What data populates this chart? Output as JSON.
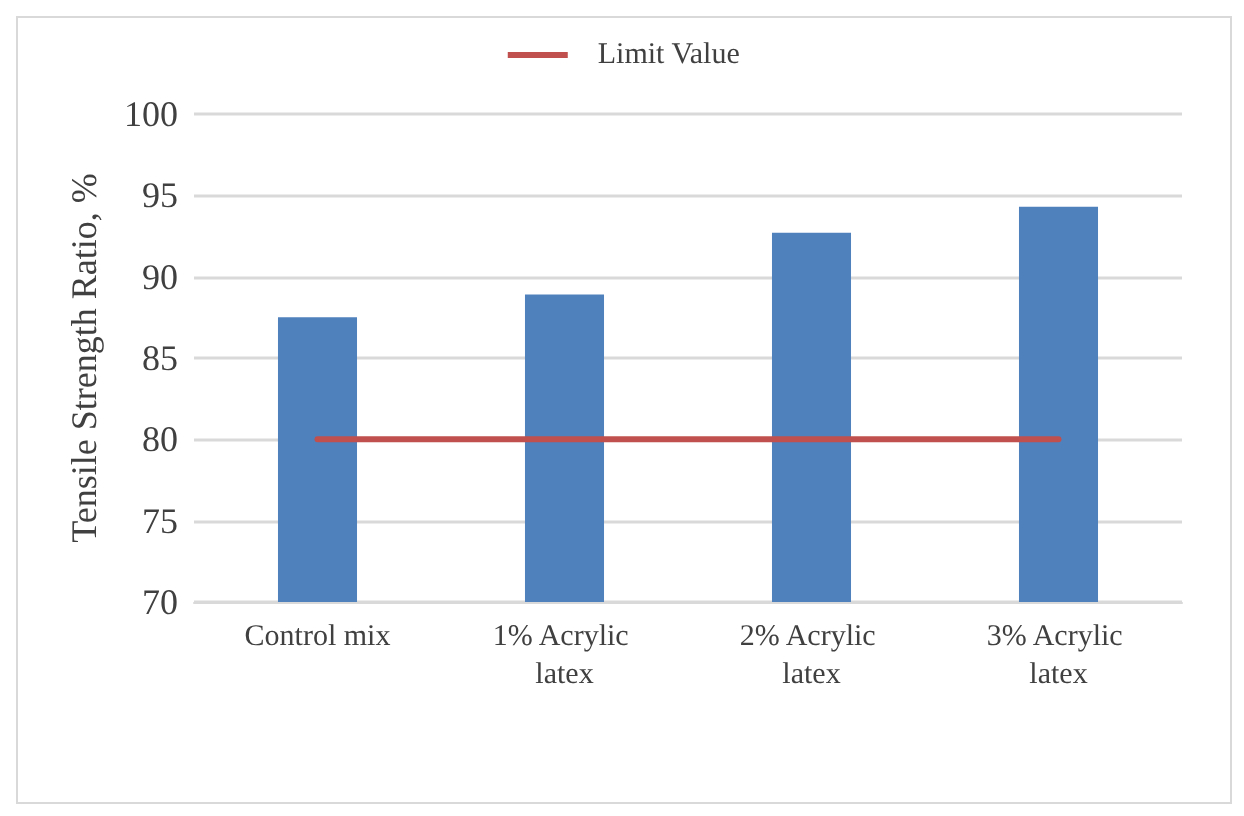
{
  "chart_data": {
    "type": "bar",
    "ylabel": "Tensile Strength Ratio, %",
    "categories": [
      "Control mix",
      "1% Acrylic latex",
      "2% Acrylic latex",
      "3% Acrylic latex"
    ],
    "series": [
      {
        "color": "#4f81bd",
        "values": [
          87.5,
          88.9,
          92.7,
          94.3
        ]
      },
      {
        "type": "line",
        "name": "Limit Value",
        "color": "#c0504d",
        "values": [
          80,
          80,
          80,
          80
        ],
        "marker": "none"
      }
    ],
    "ylim": [
      70,
      100
    ],
    "yticks": [
      70,
      75,
      80,
      85,
      90,
      95,
      100
    ],
    "grid": "y",
    "legend": "top"
  }
}
